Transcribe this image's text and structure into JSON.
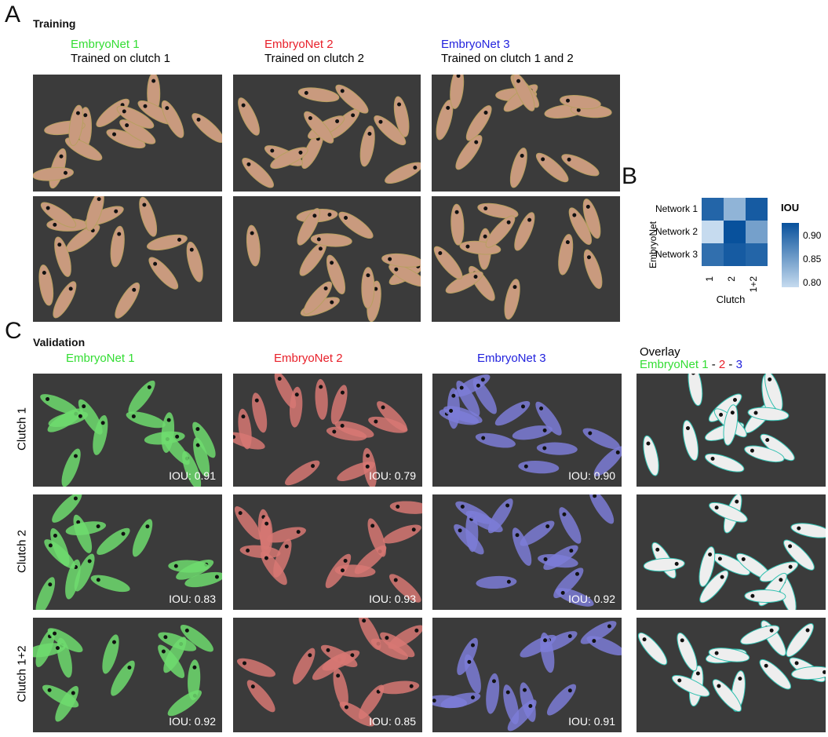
{
  "panels": {
    "a": "A",
    "b": "B",
    "c": "C"
  },
  "training": {
    "title": "Training",
    "networks": [
      {
        "name": "EmbryoNet 1",
        "desc": "Trained on clutch 1",
        "color": "#33dd33"
      },
      {
        "name": "EmbryoNet 2",
        "desc": "Trained on clutch 2",
        "color": "#e8202a"
      },
      {
        "name": "EmbryoNet 3",
        "desc": "Trained on clutch 1 and 2",
        "color": "#2222dd"
      }
    ]
  },
  "heatmap": {
    "ylabel": "EmbryoNet",
    "xlabel": "Clutch",
    "legend_title": "IOU",
    "rows": [
      "Network 1",
      "Network 2",
      "Network 3"
    ],
    "cols": [
      "1",
      "2",
      "1+2"
    ],
    "values": [
      [
        0.91,
        0.83,
        0.92
      ],
      [
        0.79,
        0.93,
        0.85
      ],
      [
        0.9,
        0.92,
        0.91
      ]
    ],
    "legend_ticks": [
      "0.90",
      "0.85",
      "0.80"
    ],
    "range": [
      0.79,
      0.93
    ]
  },
  "validation": {
    "title": "Validation",
    "columns": [
      {
        "name": "EmbryoNet 1",
        "color": "#33dd33"
      },
      {
        "name": "EmbryoNet 2",
        "color": "#e8202a"
      },
      {
        "name": "EmbryoNet 3",
        "color": "#2222dd"
      }
    ],
    "overlay": {
      "title": "Overlay",
      "n1": "EmbryoNet 1",
      "sep1": " - ",
      "n2": "2",
      "sep2": " - ",
      "n3": "3"
    },
    "rows": [
      "Clutch 1",
      "Clutch 2",
      "Clutch 1+2"
    ],
    "iou": [
      [
        "IOU: 0.91",
        "IOU: 0.79",
        "IOU: 0.90"
      ],
      [
        "IOU: 0.83",
        "IOU: 0.93",
        "IOU: 0.92"
      ],
      [
        "IOU: 0.92",
        "IOU: 0.85",
        "IOU: 0.91"
      ]
    ]
  }
}
